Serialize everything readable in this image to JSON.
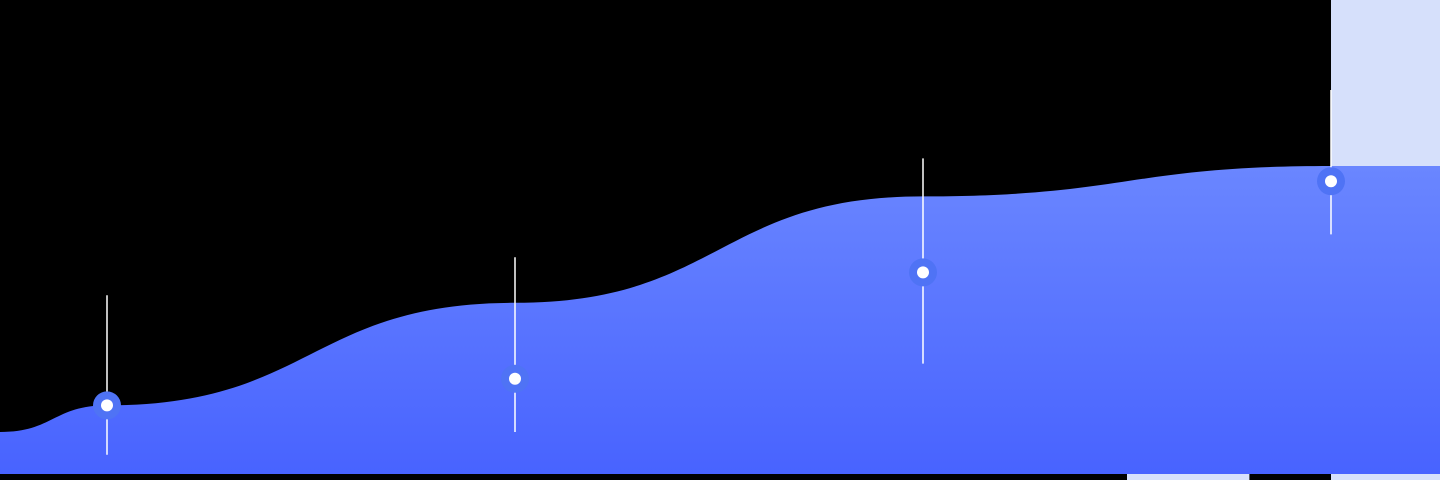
{
  "chart_data": {
    "type": "area",
    "title": "",
    "xlabel": "",
    "ylabel": "",
    "curve": "smooth",
    "grid": false,
    "legend": "none",
    "series": [
      {
        "values": [
          {
            "x": 0,
            "y": 10
          },
          {
            "x": 1,
            "y": 17
          },
          {
            "x": 2,
            "y": 44
          },
          {
            "x": 3,
            "y": 72
          },
          {
            "x": 4,
            "y": 80
          }
        ]
      }
    ],
    "markers": [
      {
        "x": 1,
        "y": 17,
        "stem": [
          4,
          46
        ]
      },
      {
        "x": 2,
        "y": 24,
        "stem": [
          10,
          56
        ]
      },
      {
        "x": 3,
        "y": 52,
        "stem": [
          28,
          82
        ]
      },
      {
        "x": 4,
        "y": 76,
        "stem": [
          62,
          100
        ]
      }
    ],
    "highlight_bands": [
      {
        "from": 3.5,
        "to": 3.8,
        "y": 61.5
      },
      {
        "from": 4.0,
        "to": 5.0,
        "y": 100
      }
    ],
    "xlim": [
      0,
      5
    ],
    "ylim": [
      0,
      100
    ]
  },
  "colors": {
    "background": "#000000",
    "area_top": "#6a86ff",
    "area_bottom": "#4863ff",
    "highlight": "#d6e0fb",
    "marker_halo": "#4f73f5",
    "marker_dot": "#ffffff",
    "stem": "#ffffff"
  }
}
